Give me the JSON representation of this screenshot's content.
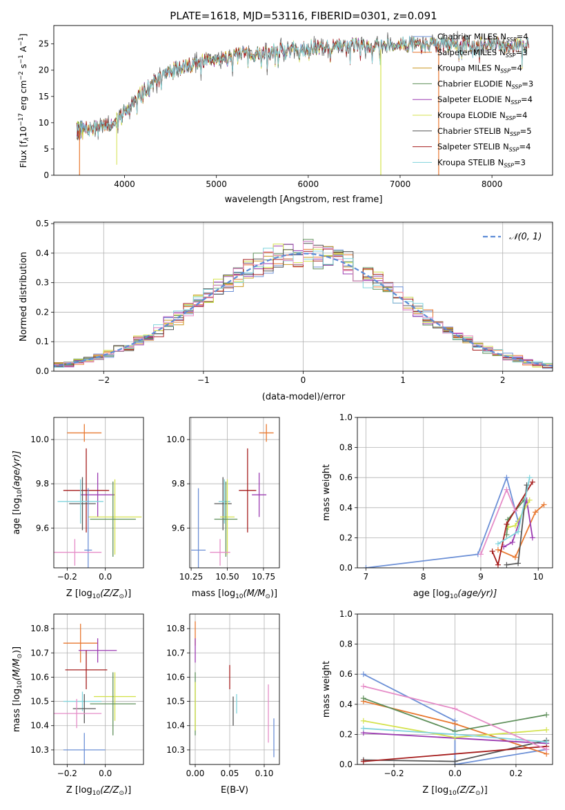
{
  "colors": {
    "Chabrier MILES": "#6b8fd6",
    "Salpeter MILES": "#e8772e",
    "Kroupa MILES": "#c9951e",
    "Chabrier ELODIE": "#5e8f5a",
    "Salpeter ELODIE": "#9a39b0",
    "Kroupa ELODIE": "#d4e24c",
    "Chabrier STELIB": "#555555",
    "Salpeter STELIB": "#a51c1c",
    "Kroupa STELIB": "#7fd3dc",
    "extra": "#e58bc7"
  },
  "chart_data": [
    {
      "id": "spectrum",
      "type": "line",
      "title": "PLATE=1618, MJD=53116, FIBERID=0301, z=0.091",
      "xlabel": "wavelength [Angstrom, rest frame]",
      "ylabel": "Flux [f",
      "ylabel_sub": "λ",
      "ylabel_rest": "10",
      "ylabel_exp1": "−17",
      "ylabel_mid": " erg cm",
      "ylabel_exp2": "−2",
      "ylabel_mid2": " s",
      "ylabel_exp3": "−1",
      "ylabel_end": " A",
      "ylabel_exp4": "−1",
      "ylabel_close": "]",
      "xlim": [
        3230,
        8660
      ],
      "ylim": [
        0,
        28.5
      ],
      "xticks": [
        4000,
        5000,
        6000,
        7000,
        8000
      ],
      "yticks": [
        0,
        5,
        10,
        15,
        20,
        25
      ],
      "continuum": [
        [
          3500,
          8.5
        ],
        [
          3700,
          9.0
        ],
        [
          3900,
          10.0
        ],
        [
          4000,
          12.5
        ],
        [
          4200,
          16.0
        ],
        [
          4500,
          20.0
        ],
        [
          4900,
          22.0
        ],
        [
          5300,
          23.0
        ],
        [
          5800,
          24.0
        ],
        [
          6200,
          24.5
        ],
        [
          6700,
          24.8
        ],
        [
          7100,
          25.0
        ],
        [
          7500,
          25.0
        ],
        [
          8000,
          24.8
        ],
        [
          8400,
          24.8
        ]
      ],
      "series_order": [
        "Chabrier MILES",
        "Salpeter MILES",
        "Kroupa MILES",
        "Chabrier ELODIE",
        "Salpeter ELODIE",
        "Kroupa ELODIE",
        "Chabrier STELIB",
        "Salpeter STELIB",
        "Kroupa STELIB"
      ],
      "legend": [
        {
          "label": "Chabrier MILES",
          "n": "4"
        },
        {
          "label": "Salpeter MILES",
          "n": "3"
        },
        {
          "label": "Kroupa MILES",
          "n": "4"
        },
        {
          "label": "Chabrier ELODIE",
          "n": "3"
        },
        {
          "label": "Salpeter ELODIE",
          "n": "4"
        },
        {
          "label": "Kroupa ELODIE",
          "n": "4"
        },
        {
          "label": "Chabrier STELIB",
          "n": "5"
        },
        {
          "label": "Salpeter STELIB",
          "n": "4"
        },
        {
          "label": "Kroupa STELIB",
          "n": "3"
        }
      ],
      "legend_text_a": "N",
      "legend_text_b": "SSP",
      "legend_text_c": "=",
      "legend_position": "right"
    },
    {
      "id": "histogram",
      "type": "line",
      "xlabel": "(data-model)/error",
      "ylabel": "Normed distribution",
      "legend": "𝒩(0, 1)",
      "legend_position": "top-right",
      "xlim": [
        -2.5,
        2.5
      ],
      "ylim": [
        0,
        0.505
      ],
      "xticks": [
        -2,
        -1,
        0,
        1,
        2
      ],
      "xtick_labels": [
        "−2",
        "−1",
        "0",
        "1",
        "2"
      ],
      "yticks": [
        0.0,
        0.1,
        0.2,
        0.3,
        0.4,
        0.5
      ],
      "ytick_labels": [
        "0.0",
        "0.1",
        "0.2",
        "0.3",
        "0.4",
        "0.5"
      ],
      "bin_width": 0.1,
      "grid": true
    },
    {
      "id": "age_vs_Z",
      "type": "scatter",
      "xlabel": "Z [log",
      "xlabel_sub": "10",
      "xlabel_rest": "(Z/Z",
      "xlabel_sun": "⊙",
      "xlabel_end": ")]",
      "ylabel": "age  [log",
      "ylabel_sub": "10",
      "ylabel_rest": "(age/yr)]",
      "xlim": [
        -0.27,
        0.2
      ],
      "ylim": [
        9.42,
        10.1
      ],
      "xticks": [
        -0.2,
        0.0
      ],
      "xtick_labels": [
        "−0.2",
        "0.0"
      ],
      "yticks": [
        9.6,
        9.8,
        10.0
      ],
      "ytick_labels": [
        "9.6",
        "9.8",
        "10.0"
      ],
      "points": [
        {
          "s": "Salpeter MILES",
          "x": -0.11,
          "y": 10.03,
          "xe": 0.09,
          "ye": 0.04
        },
        {
          "s": "Salpeter ELODIE",
          "x": -0.04,
          "y": 9.75,
          "xe": 0.09,
          "ye": 0.1
        },
        {
          "s": "Salpeter STELIB",
          "x": -0.1,
          "y": 9.77,
          "xe": 0.12,
          "ye": 0.19
        },
        {
          "s": "Chabrier STELIB",
          "x": -0.12,
          "y": 9.71,
          "xe": 0.07,
          "ye": 0.12
        },
        {
          "s": "Kroupa STELIB",
          "x": -0.13,
          "y": 9.72,
          "xe": 0.12,
          "ye": 0.1
        },
        {
          "s": "Kroupa ELODIE",
          "x": 0.05,
          "y": 9.65,
          "xe": 0.14,
          "ye": 0.17
        },
        {
          "s": "Chabrier ELODIE",
          "x": 0.04,
          "y": 9.64,
          "xe": 0.12,
          "ye": 0.17
        },
        {
          "s": "Chabrier MILES",
          "x": -0.09,
          "y": 9.5,
          "xe": 0.02,
          "ye": 0.28
        },
        {
          "s": "extra",
          "x": -0.16,
          "y": 9.49,
          "xe": 0.14,
          "ye": 0.06
        }
      ]
    },
    {
      "id": "age_vs_mass",
      "type": "scatter",
      "xlabel": "mass [log",
      "xlabel_sub": "10",
      "xlabel_rest": "(M/M",
      "xlabel_sun": "⊙",
      "xlabel_end": ")]",
      "xlim": [
        10.24,
        10.86
      ],
      "ylim": [
        9.42,
        10.1
      ],
      "xticks": [
        10.25,
        10.5,
        10.75
      ],
      "xtick_labels": [
        "10.25",
        "10.50",
        "10.75"
      ],
      "yticks": [
        9.6,
        9.8,
        10.0
      ],
      "ytick_labels": [
        "9.6",
        "9.8",
        "10.0"
      ],
      "points": [
        {
          "s": "Salpeter MILES",
          "x": 10.77,
          "y": 10.03,
          "xe": 0.05,
          "ye": 0.04
        },
        {
          "s": "Salpeter ELODIE",
          "x": 10.72,
          "y": 9.75,
          "xe": 0.05,
          "ye": 0.1
        },
        {
          "s": "Salpeter STELIB",
          "x": 10.64,
          "y": 9.77,
          "xe": 0.06,
          "ye": 0.19
        },
        {
          "s": "Chabrier STELIB",
          "x": 10.47,
          "y": 9.71,
          "xe": 0.06,
          "ye": 0.12
        },
        {
          "s": "Kroupa STELIB",
          "x": 10.48,
          "y": 9.72,
          "xe": 0.04,
          "ye": 0.1
        },
        {
          "s": "Kroupa ELODIE",
          "x": 10.5,
          "y": 9.65,
          "xe": 0.05,
          "ye": 0.17
        },
        {
          "s": "Chabrier ELODIE",
          "x": 10.49,
          "y": 9.64,
          "xe": 0.08,
          "ye": 0.17
        },
        {
          "s": "Chabrier MILES",
          "x": 10.3,
          "y": 9.5,
          "xe": 0.05,
          "ye": 0.28
        },
        {
          "s": "extra",
          "x": 10.45,
          "y": 9.49,
          "xe": 0.07,
          "ye": 0.06
        }
      ]
    },
    {
      "id": "mw_vs_age",
      "type": "line",
      "xlabel": "age  [log",
      "xlabel_sub": "10",
      "xlabel_rest": "(age/yr)]",
      "ylabel": "mass weight",
      "xlim": [
        6.85,
        10.25
      ],
      "ylim": [
        0,
        1.0
      ],
      "xticks": [
        7,
        8,
        9,
        10
      ],
      "xtick_labels": [
        "7",
        "8",
        "9",
        "10"
      ],
      "yticks": [
        0.0,
        0.2,
        0.4,
        0.6,
        0.8,
        1.0
      ],
      "ytick_labels": [
        "0.0",
        "0.2",
        "0.4",
        "0.6",
        "0.8",
        "1.0"
      ],
      "series": [
        {
          "s": "Chabrier MILES",
          "pts": [
            [
              7.0,
              0.0
            ],
            [
              8.95,
              0.09
            ],
            [
              9.45,
              0.6
            ],
            [
              9.65,
              0.31
            ]
          ]
        },
        {
          "s": "Salpeter MILES",
          "pts": [
            [
              9.3,
              0.12
            ],
            [
              9.6,
              0.07
            ],
            [
              9.95,
              0.37
            ],
            [
              10.1,
              0.42
            ]
          ]
        },
        {
          "s": "Chabrier ELODIE",
          "pts": [
            [
              9.45,
              0.22
            ],
            [
              9.47,
              0.32
            ],
            [
              9.75,
              0.45
            ]
          ]
        },
        {
          "s": "Salpeter ELODIE",
          "pts": [
            [
              9.4,
              0.14
            ],
            [
              9.55,
              0.17
            ],
            [
              9.8,
              0.45
            ],
            [
              9.9,
              0.2
            ]
          ]
        },
        {
          "s": "Kroupa ELODIE",
          "pts": [
            [
              9.48,
              0.27
            ],
            [
              9.6,
              0.28
            ],
            [
              9.85,
              0.45
            ]
          ]
        },
        {
          "s": "Chabrier STELIB",
          "pts": [
            [
              9.45,
              0.02
            ],
            [
              9.65,
              0.03
            ],
            [
              9.8,
              0.55
            ]
          ]
        },
        {
          "s": "Salpeter STELIB",
          "pts": [
            [
              9.2,
              0.11
            ],
            [
              9.3,
              0.02
            ],
            [
              9.45,
              0.29
            ],
            [
              9.9,
              0.57
            ]
          ]
        },
        {
          "s": "Kroupa STELIB",
          "pts": [
            [
              9.3,
              0.16
            ],
            [
              9.65,
              0.24
            ],
            [
              9.85,
              0.6
            ]
          ]
        },
        {
          "s": "extra",
          "pts": [
            [
              9.0,
              0.09
            ],
            [
              9.45,
              0.52
            ],
            [
              9.6,
              0.38
            ]
          ]
        }
      ]
    },
    {
      "id": "mass_vs_Z",
      "type": "scatter",
      "xlabel": "Z [log",
      "xlabel_sub": "10",
      "xlabel_rest": "(Z/Z",
      "xlabel_sun": "⊙",
      "xlabel_end": ")]",
      "ylabel": "mass [log",
      "ylabel_sub": "10",
      "ylabel_rest": "(M/M",
      "ylabel_sun": "⊙",
      "ylabel_end": ")]",
      "xlim": [
        -0.27,
        0.2
      ],
      "ylim": [
        10.24,
        10.86
      ],
      "xticks": [
        -0.2,
        0.0
      ],
      "xtick_labels": [
        "−0.2",
        "0.0"
      ],
      "yticks": [
        10.3,
        10.4,
        10.5,
        10.6,
        10.7,
        10.8
      ],
      "ytick_labels": [
        "10.3",
        "10.4",
        "10.5",
        "10.6",
        "10.7",
        "10.8"
      ],
      "points": [
        {
          "s": "Salpeter MILES",
          "x": -0.13,
          "y": 10.74,
          "xe": 0.09,
          "ye": 0.08
        },
        {
          "s": "Salpeter ELODIE",
          "x": -0.04,
          "y": 10.71,
          "xe": 0.1,
          "ye": 0.05
        },
        {
          "s": "Salpeter STELIB",
          "x": -0.1,
          "y": 10.63,
          "xe": 0.11,
          "ye": 0.08
        },
        {
          "s": "Kroupa ELODIE",
          "x": 0.05,
          "y": 10.52,
          "xe": 0.11,
          "ye": 0.1
        },
        {
          "s": "Chabrier ELODIE",
          "x": 0.04,
          "y": 10.49,
          "xe": 0.12,
          "ye": 0.13
        },
        {
          "s": "Kroupa STELIB",
          "x": -0.12,
          "y": 10.5,
          "xe": 0.1,
          "ye": 0.04
        },
        {
          "s": "Chabrier STELIB",
          "x": -0.11,
          "y": 10.47,
          "xe": 0.06,
          "ye": 0.06
        },
        {
          "s": "extra",
          "x": -0.15,
          "y": 10.45,
          "xe": 0.13,
          "ye": 0.06
        },
        {
          "s": "Chabrier MILES",
          "x": -0.11,
          "y": 10.3,
          "xe": 0.11,
          "ye": 0.07
        }
      ]
    },
    {
      "id": "mass_vs_ebv",
      "type": "scatter",
      "xlabel": "E(B-V)",
      "xlim": [
        -0.008,
        0.122
      ],
      "ylim": [
        10.24,
        10.86
      ],
      "xticks": [
        0.0,
        0.05,
        0.1
      ],
      "xtick_labels": [
        "0.00",
        "0.05",
        "0.10"
      ],
      "yticks": [
        10.3,
        10.4,
        10.5,
        10.6,
        10.7,
        10.8
      ],
      "ytick_labels": [
        "10.3",
        "10.4",
        "10.5",
        "10.6",
        "10.7",
        "10.8"
      ],
      "points": [
        {
          "s": "Salpeter MILES",
          "x": 0.0,
          "y": 10.78,
          "xe": 0.0,
          "ye": 0.05
        },
        {
          "s": "Salpeter ELODIE",
          "x": 0.0,
          "y": 10.71,
          "xe": 0.0,
          "ye": 0.05
        },
        {
          "s": "Chabrier ELODIE",
          "x": 0.0,
          "y": 10.49,
          "xe": 0.0,
          "ye": 0.13
        },
        {
          "s": "Kroupa ELODIE",
          "x": 0.0,
          "y": 10.48,
          "xe": 0.0,
          "ye": 0.1
        },
        {
          "s": "Salpeter STELIB",
          "x": 0.05,
          "y": 10.6,
          "xe": 0.0,
          "ye": 0.05
        },
        {
          "s": "Chabrier STELIB",
          "x": 0.055,
          "y": 10.46,
          "xe": 0.0,
          "ye": 0.06
        },
        {
          "s": "Kroupa STELIB",
          "x": 0.06,
          "y": 10.49,
          "xe": 0.0,
          "ye": 0.04
        },
        {
          "s": "extra",
          "x": 0.106,
          "y": 10.45,
          "xe": 0.0,
          "ye": 0.12
        },
        {
          "s": "Chabrier MILES",
          "x": 0.114,
          "y": 10.35,
          "xe": 0.0,
          "ye": 0.08
        }
      ]
    },
    {
      "id": "mw_vs_Z",
      "type": "line",
      "xlabel": "Z [log",
      "xlabel_sub": "10",
      "xlabel_rest": "(Z/Z",
      "xlabel_sun": "⊙",
      "xlabel_end": ")]",
      "ylabel": "mass weight",
      "xlim": [
        -0.32,
        0.32
      ],
      "ylim": [
        0,
        1.0
      ],
      "xticks": [
        -0.2,
        0.0,
        0.2
      ],
      "xtick_labels": [
        "−0.2",
        "0.0",
        "0.2"
      ],
      "yticks": [
        0.0,
        0.2,
        0.4,
        0.6,
        0.8,
        1.0
      ],
      "ytick_labels": [
        "0.0",
        "0.2",
        "0.4",
        "0.6",
        "0.8",
        "1.0"
      ],
      "series": [
        {
          "s": "Chabrier MILES",
          "pts": [
            [
              -0.3,
              0.6
            ],
            [
              0.0,
              0.29
            ],
            [
              0.0,
              0.0
            ],
            [
              0.3,
              0.1
            ]
          ]
        },
        {
          "s": "Salpeter MILES",
          "pts": [
            [
              -0.3,
              0.42
            ],
            [
              0.0,
              0.27
            ],
            [
              0.3,
              0.07
            ]
          ]
        },
        {
          "s": "Chabrier ELODIE",
          "pts": [
            [
              -0.3,
              0.44
            ],
            [
              0.0,
              0.22
            ],
            [
              0.3,
              0.33
            ]
          ]
        },
        {
          "s": "Salpeter ELODIE",
          "pts": [
            [
              -0.3,
              0.21
            ],
            [
              0.3,
              0.14
            ]
          ]
        },
        {
          "s": "Kroupa ELODIE",
          "pts": [
            [
              -0.3,
              0.29
            ],
            [
              0.0,
              0.18
            ],
            [
              0.3,
              0.23
            ]
          ]
        },
        {
          "s": "Chabrier STELIB",
          "pts": [
            [
              -0.3,
              0.03
            ],
            [
              0.0,
              0.02
            ],
            [
              0.3,
              0.16
            ]
          ]
        },
        {
          "s": "Salpeter STELIB",
          "pts": [
            [
              -0.3,
              0.02
            ],
            [
              0.3,
              0.12
            ]
          ]
        },
        {
          "s": "Kroupa STELIB",
          "pts": [
            [
              -0.3,
              0.24
            ],
            [
              0.0,
              0.2
            ],
            [
              0.3,
              0.15
            ]
          ]
        },
        {
          "s": "extra",
          "pts": [
            [
              -0.3,
              0.52
            ],
            [
              0.0,
              0.37
            ],
            [
              0.3,
              0.1
            ]
          ]
        }
      ]
    }
  ]
}
